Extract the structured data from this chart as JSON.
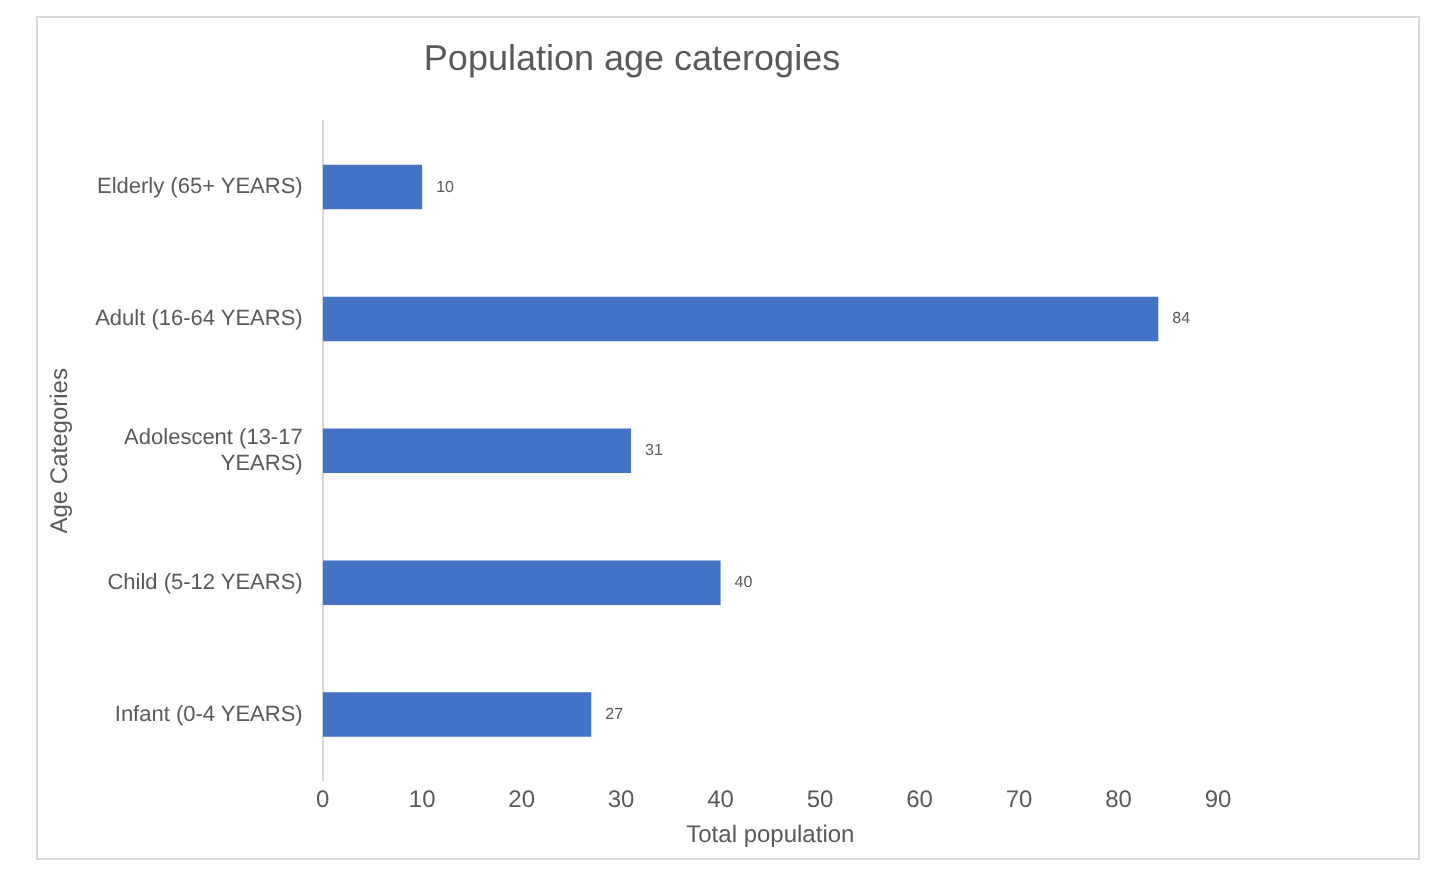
{
  "chart_data": {
    "type": "bar",
    "orientation": "horizontal",
    "title": "Population age caterogies",
    "xlabel": "Total population",
    "ylabel": "Age Categories",
    "categories": [
      "Elderly (65+ YEARS)",
      "Adult (16-64 YEARS)",
      "Adolescent (13-17 YEARS)",
      "Child (5-12 YEARS)",
      "Infant (0-4 YEARS)"
    ],
    "values": [
      10,
      84,
      31,
      40,
      27
    ],
    "color": "#4472c4",
    "xlim": [
      0,
      90
    ],
    "xticks": [
      0,
      10,
      20,
      30,
      40,
      50,
      60,
      70,
      80,
      90
    ],
    "grid": false,
    "legend": false,
    "data_labels": true
  }
}
